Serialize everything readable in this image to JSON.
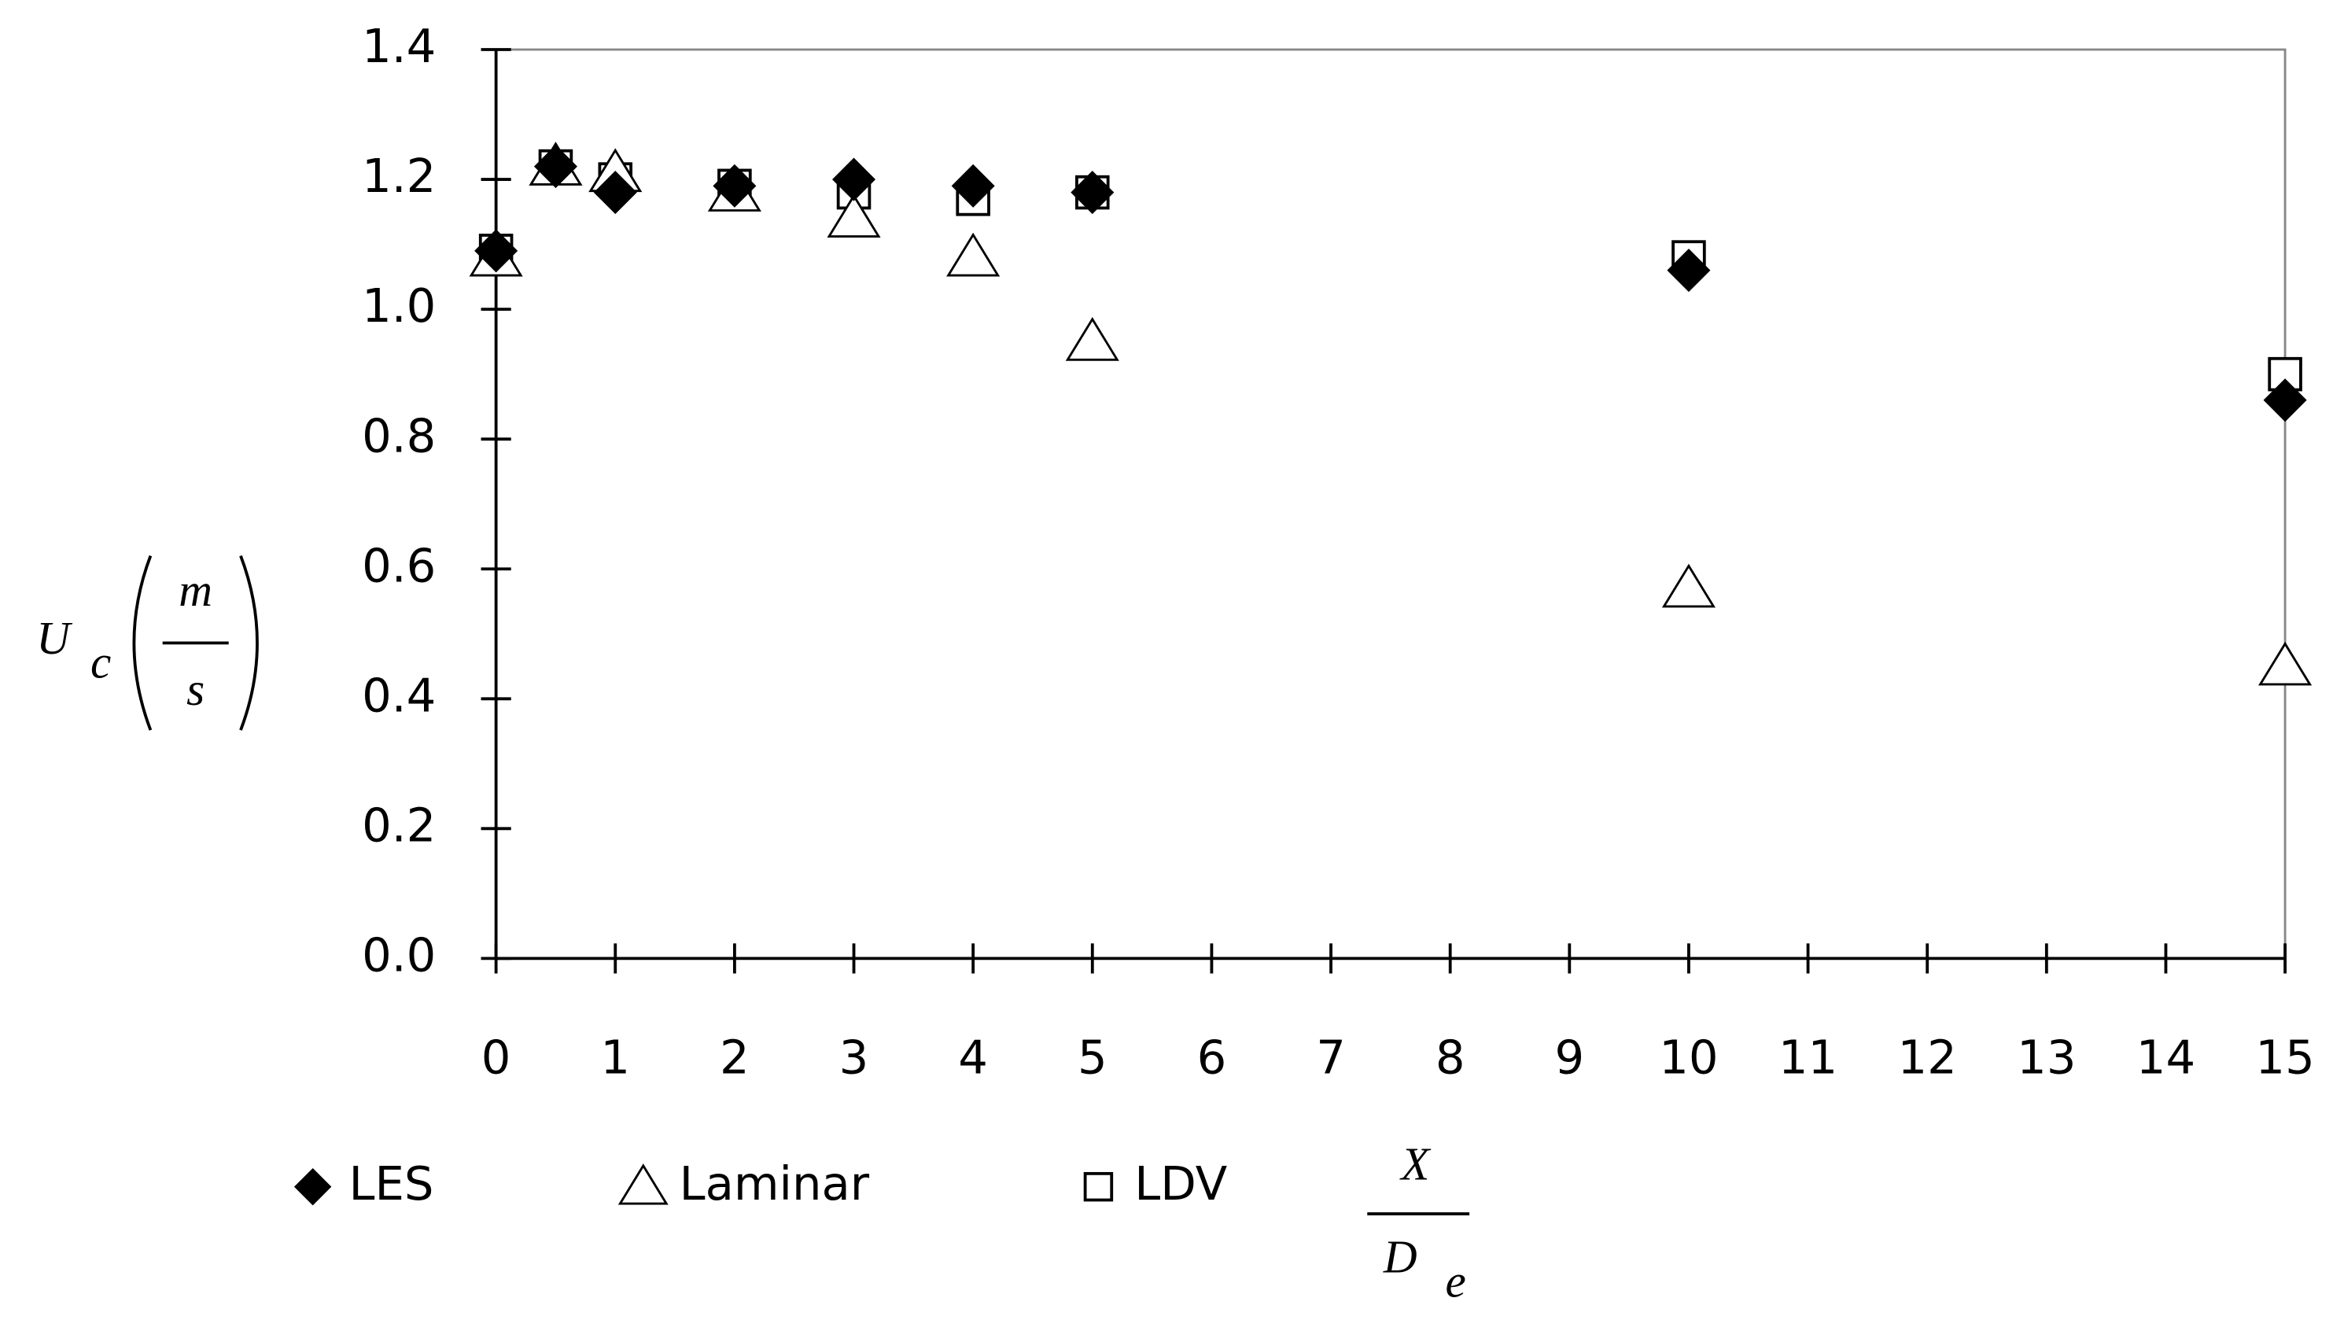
{
  "chart_data": {
    "type": "scatter",
    "x_label": {
      "numerator": "X",
      "denominator": "D",
      "subscript": "e"
    },
    "y_label": {
      "symbol": "U",
      "subscript": "c",
      "numerator": "m",
      "denominator": "s"
    },
    "xlim": [
      0,
      15
    ],
    "ylim": [
      0,
      1.4
    ],
    "xticks": [
      0,
      1,
      2,
      3,
      4,
      5,
      6,
      7,
      8,
      9,
      10,
      11,
      12,
      13,
      14,
      15
    ],
    "yticks": [
      {
        "value": 0,
        "label": "0.0"
      },
      0.2,
      0.4,
      0.6,
      0.8,
      {
        "value": 1,
        "label": "1.0"
      },
      1.2,
      1.4
    ],
    "legend": "bottom",
    "series": [
      {
        "name": "LES",
        "color": "#000000",
        "marker": "diamond",
        "x": [
          0,
          0.5,
          1,
          2,
          3,
          4,
          5,
          10,
          15
        ],
        "values": [
          1.09,
          1.22,
          1.18,
          1.19,
          1.2,
          1.19,
          1.18,
          1.06,
          0.86
        ]
      },
      {
        "name": "Laminar",
        "color": "#ffffff",
        "marker": "triangle",
        "x": [
          0,
          0.5,
          1,
          2,
          3,
          4,
          5,
          10,
          15
        ],
        "values": [
          1.08,
          1.22,
          1.21,
          1.18,
          1.14,
          1.08,
          0.95,
          0.57,
          0.45
        ]
      },
      {
        "name": "LDV",
        "color": "#ffffff",
        "marker": "square",
        "x": [
          0,
          0.5,
          1,
          2,
          3,
          4,
          5,
          10,
          15
        ],
        "values": [
          1.09,
          1.22,
          1.2,
          1.19,
          1.18,
          1.17,
          1.18,
          1.08,
          0.9
        ]
      }
    ]
  }
}
